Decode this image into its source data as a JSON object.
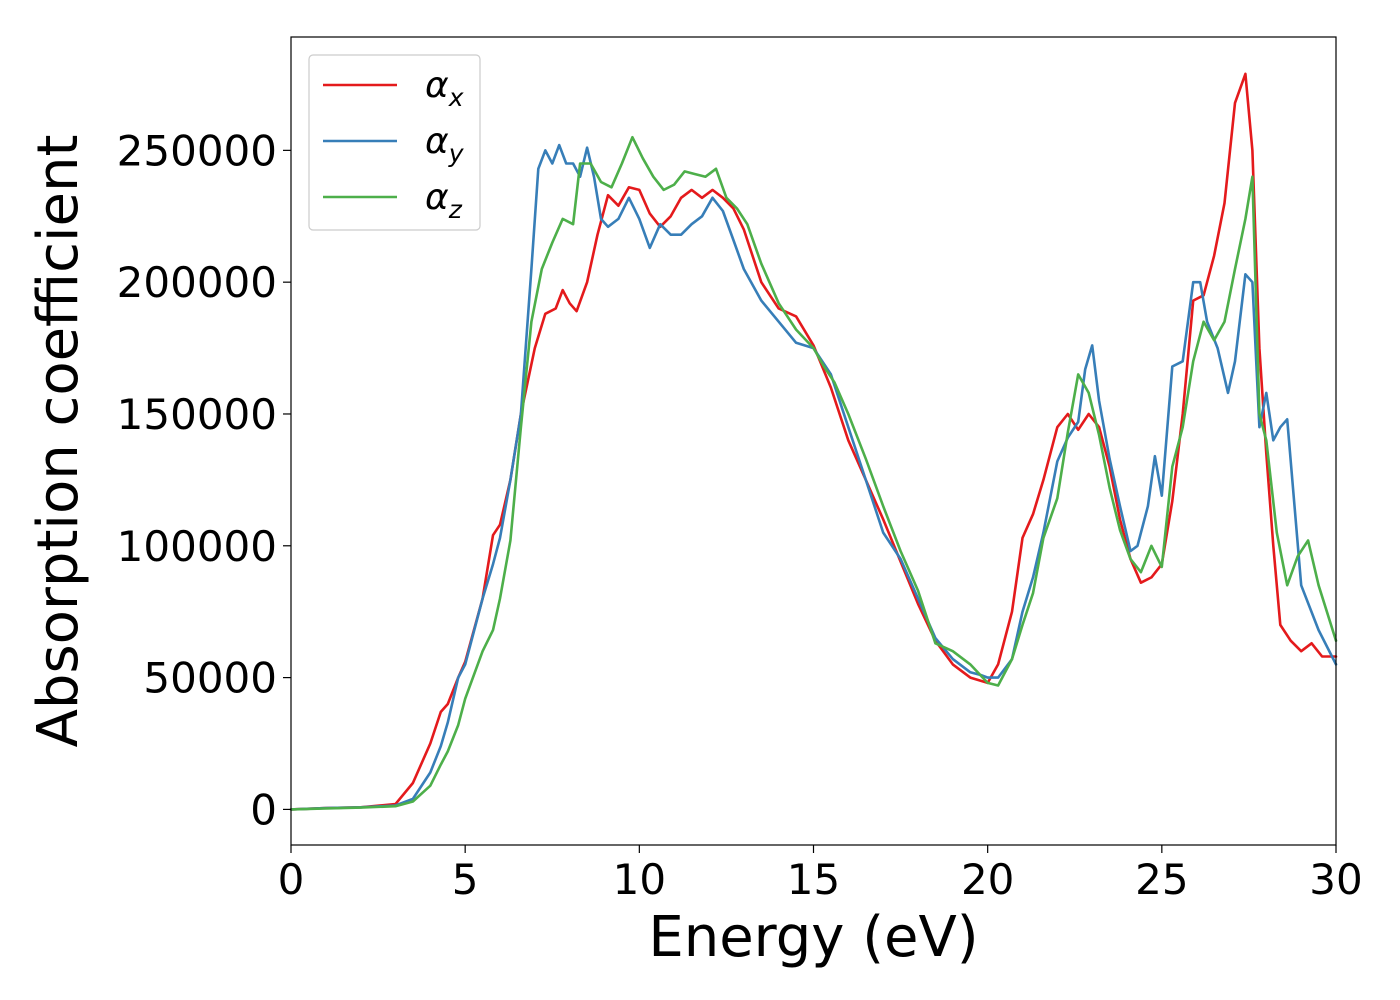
{
  "chart_data": {
    "type": "line",
    "title": "",
    "xlabel": "Energy (eV)",
    "ylabel": "Absorption coefficient",
    "xlim": [
      0,
      30
    ],
    "ylim": [
      -13500,
      293000
    ],
    "xticks": [
      0,
      5,
      10,
      15,
      20,
      25,
      30
    ],
    "yticks": [
      0,
      50000,
      100000,
      150000,
      200000,
      250000
    ],
    "grid": false,
    "legend_position": "top-left",
    "series": [
      {
        "name": "α",
        "subscript": "x",
        "color": "#e41a1c",
        "x": [
          0,
          1,
          2,
          3,
          3.5,
          4,
          4.3,
          4.5,
          4.8,
          5,
          5.5,
          5.8,
          6,
          6.3,
          6.6,
          7,
          7.3,
          7.6,
          7.8,
          8,
          8.2,
          8.5,
          8.8,
          9.1,
          9.4,
          9.7,
          10,
          10.3,
          10.6,
          10.9,
          11.2,
          11.5,
          11.8,
          12.1,
          12.4,
          12.7,
          13,
          13.5,
          14,
          14.5,
          15,
          15.5,
          16,
          16.5,
          17,
          17.5,
          18,
          18.5,
          19,
          19.5,
          20,
          20.3,
          20.7,
          21,
          21.3,
          21.6,
          22,
          22.3,
          22.6,
          22.9,
          23.2,
          23.5,
          23.8,
          24.1,
          24.4,
          24.7,
          25,
          25.3,
          25.6,
          25.9,
          26.2,
          26.5,
          26.8,
          27.1,
          27.4,
          27.6,
          27.8,
          28,
          28.2,
          28.4,
          28.7,
          29,
          29.3,
          29.6,
          30
        ],
        "y": [
          0,
          500,
          800,
          2000,
          10000,
          25000,
          37000,
          40000,
          50000,
          56000,
          80000,
          104000,
          108000,
          125000,
          150000,
          175000,
          188000,
          190000,
          197000,
          192000,
          189000,
          200000,
          218000,
          233000,
          229000,
          236000,
          235000,
          226000,
          221000,
          225000,
          232000,
          235000,
          232000,
          235000,
          232000,
          228000,
          220000,
          200000,
          190000,
          187000,
          176000,
          160000,
          140000,
          125000,
          110000,
          94000,
          78000,
          64000,
          55000,
          50000,
          48000,
          55000,
          75000,
          103000,
          112000,
          125000,
          145000,
          150000,
          144000,
          150000,
          145000,
          130000,
          110000,
          95000,
          86000,
          88000,
          93000,
          117000,
          150000,
          193000,
          195000,
          210000,
          230000,
          268000,
          279000,
          250000,
          175000,
          135000,
          100000,
          70000,
          64000,
          60000,
          63000,
          58000,
          58000
        ]
      },
      {
        "name": "α",
        "subscript": "y",
        "color": "#377eb8",
        "x": [
          0,
          1,
          2,
          3,
          3.5,
          4,
          4.3,
          4.5,
          4.8,
          5,
          5.5,
          5.8,
          6,
          6.3,
          6.6,
          6.9,
          7.1,
          7.3,
          7.5,
          7.7,
          7.9,
          8.1,
          8.3,
          8.5,
          8.7,
          8.9,
          9.1,
          9.4,
          9.7,
          10,
          10.3,
          10.6,
          10.9,
          11.2,
          11.5,
          11.8,
          12.1,
          12.4,
          12.7,
          13,
          13.5,
          14,
          14.5,
          15,
          15.5,
          16,
          16.5,
          17,
          17.5,
          18,
          18.5,
          19,
          19.5,
          19.8,
          20,
          20.3,
          20.7,
          21,
          21.3,
          21.6,
          22,
          22.3,
          22.6,
          22.8,
          23,
          23.2,
          23.5,
          23.8,
          24.1,
          24.3,
          24.6,
          24.8,
          25,
          25.3,
          25.6,
          25.9,
          26.1,
          26.3,
          26.6,
          26.9,
          27.1,
          27.4,
          27.6,
          27.8,
          28,
          28.2,
          28.4,
          28.6,
          29,
          29.5,
          30
        ],
        "y": [
          0,
          500,
          800,
          1500,
          4000,
          14000,
          24000,
          33000,
          50000,
          55000,
          80000,
          93000,
          103000,
          125000,
          150000,
          205000,
          243000,
          250000,
          245000,
          252000,
          245000,
          245000,
          240000,
          251000,
          240000,
          224000,
          221000,
          224000,
          232000,
          224000,
          213000,
          222000,
          218000,
          218000,
          222000,
          225000,
          232000,
          227000,
          216000,
          205000,
          193000,
          185000,
          177000,
          175000,
          165000,
          145000,
          125000,
          105000,
          95000,
          80000,
          65000,
          57000,
          52000,
          51000,
          50000,
          50000,
          57000,
          75000,
          88000,
          105000,
          132000,
          141000,
          147000,
          167000,
          176000,
          155000,
          133000,
          115000,
          98000,
          100000,
          115000,
          134000,
          119000,
          168000,
          170000,
          200000,
          200000,
          185000,
          175000,
          158000,
          170000,
          203000,
          200000,
          145000,
          158000,
          140000,
          145000,
          148000,
          85000,
          68000,
          55000
        ]
      },
      {
        "name": "α",
        "subscript": "z",
        "color": "#4daf4a",
        "x": [
          0,
          1,
          2,
          3,
          3.5,
          4,
          4.3,
          4.5,
          4.8,
          5,
          5.5,
          5.8,
          6,
          6.3,
          6.6,
          6.9,
          7.2,
          7.5,
          7.8,
          8.1,
          8.3,
          8.6,
          8.9,
          9.2,
          9.5,
          9.8,
          10.1,
          10.4,
          10.7,
          11,
          11.3,
          11.6,
          11.9,
          12.2,
          12.5,
          12.8,
          13.1,
          13.5,
          14,
          14.5,
          15,
          15.3,
          15.6,
          16,
          16.5,
          17,
          17.5,
          18,
          18.5,
          19,
          19.5,
          20,
          20.3,
          20.7,
          21,
          21.3,
          21.6,
          22,
          22.3,
          22.6,
          22.9,
          23.2,
          23.5,
          23.8,
          24.1,
          24.4,
          24.7,
          25,
          25.3,
          25.6,
          25.9,
          26.2,
          26.5,
          26.8,
          27.1,
          27.4,
          27.6,
          27.8,
          28,
          28.3,
          28.6,
          28.9,
          29.2,
          29.5,
          30
        ],
        "y": [
          0,
          400,
          700,
          1200,
          3000,
          9000,
          17000,
          22000,
          32000,
          42000,
          60000,
          68000,
          80000,
          102000,
          145000,
          185000,
          205000,
          215000,
          224000,
          222000,
          245000,
          245000,
          238000,
          236000,
          245000,
          255000,
          247000,
          240000,
          235000,
          237000,
          242000,
          241000,
          240000,
          243000,
          232000,
          228000,
          222000,
          207000,
          192000,
          182000,
          175000,
          168000,
          162000,
          150000,
          133000,
          115000,
          98000,
          83000,
          63000,
          60000,
          55000,
          48000,
          47000,
          57000,
          70000,
          82000,
          103000,
          118000,
          143000,
          165000,
          158000,
          142000,
          122000,
          106000,
          95000,
          90000,
          100000,
          92000,
          130000,
          145000,
          170000,
          185000,
          178000,
          185000,
          205000,
          224000,
          240000,
          150000,
          140000,
          105000,
          85000,
          96000,
          102000,
          85000,
          64000
        ]
      }
    ]
  }
}
